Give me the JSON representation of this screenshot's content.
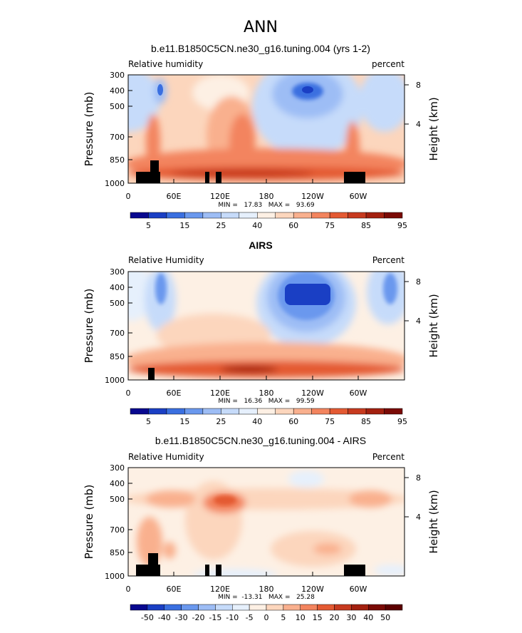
{
  "page_title": "ANN",
  "chart_data": [
    {
      "type": "heatmap",
      "title": "b.e11.B1850C5CN.ne30_g16.tuning.004 (yrs 1-2)",
      "left_label": "Relative humidity",
      "right_label": "percent",
      "ylabel": "Pressure (mb)",
      "y2label": "Height (km)",
      "yticks": [
        "300",
        "400",
        "500",
        "700",
        "850",
        "1000"
      ],
      "y2ticks": [
        "8",
        "4"
      ],
      "xticks": [
        "0",
        "60E",
        "120E",
        "180",
        "120W",
        "60W"
      ],
      "stats": "MIN =   17.83   MAX =   93.69",
      "colorbar_labels": [
        "5",
        "15",
        "25",
        "40",
        "60",
        "75",
        "85",
        "95"
      ],
      "palette": [
        "#08088f",
        "#1a3fc4",
        "#3a6fe0",
        "#6a98ee",
        "#9dbdf5",
        "#c6dbfa",
        "#e6f0fc",
        "#fdf0e4",
        "#fcd6bd",
        "#f9b08e",
        "#f3845e",
        "#e45a33",
        "#c73a1f",
        "#a3200f",
        "#7a0a05"
      ],
      "min": 17.83,
      "max": 93.69
    },
    {
      "type": "heatmap",
      "title": "AIRS",
      "left_label": "Relative Humidity",
      "right_label": "Percent",
      "ylabel": "Pressure (mb)",
      "y2label": "Height (km)",
      "yticks": [
        "300",
        "400",
        "500",
        "700",
        "850",
        "1000"
      ],
      "y2ticks": [
        "8",
        "4"
      ],
      "xticks": [
        "0",
        "60E",
        "120E",
        "180",
        "120W",
        "60W"
      ],
      "stats": "MIN =   16.36   MAX =   99.59",
      "colorbar_labels": [
        "5",
        "15",
        "25",
        "40",
        "60",
        "75",
        "85",
        "95"
      ],
      "palette": [
        "#08088f",
        "#1a3fc4",
        "#3a6fe0",
        "#6a98ee",
        "#9dbdf5",
        "#c6dbfa",
        "#e6f0fc",
        "#fdf0e4",
        "#fcd6bd",
        "#f9b08e",
        "#f3845e",
        "#e45a33",
        "#c73a1f",
        "#a3200f",
        "#7a0a05"
      ],
      "min": 16.36,
      "max": 99.59
    },
    {
      "type": "heatmap",
      "title": "b.e11.B1850C5CN.ne30_g16.tuning.004 - AIRS",
      "left_label": "Relative Humidity",
      "right_label": "Percent",
      "ylabel": "Pressure (mb)",
      "y2label": "Height (km)",
      "yticks": [
        "300",
        "400",
        "500",
        "700",
        "850",
        "1000"
      ],
      "y2ticks": [
        "8",
        "4"
      ],
      "xticks": [
        "0",
        "60E",
        "120E",
        "180",
        "120W",
        "60W"
      ],
      "stats": "MIN =  -13.31   MAX =   25.28",
      "colorbar_labels": [
        "-50",
        "-40",
        "-30",
        "-20",
        "-15",
        "-10",
        "-5",
        "0",
        "5",
        "10",
        "15",
        "20",
        "30",
        "40",
        "50"
      ],
      "palette": [
        "#08088f",
        "#1a3fc4",
        "#3a6fe0",
        "#6a98ee",
        "#9dbdf5",
        "#c6dbfa",
        "#e6f0fc",
        "#fdf0e4",
        "#fcd6bd",
        "#f9b08e",
        "#f3845e",
        "#e45a33",
        "#c73a1f",
        "#a3200f",
        "#7a0a05",
        "#5c0000"
      ],
      "min": -13.31,
      "max": 25.28
    }
  ]
}
